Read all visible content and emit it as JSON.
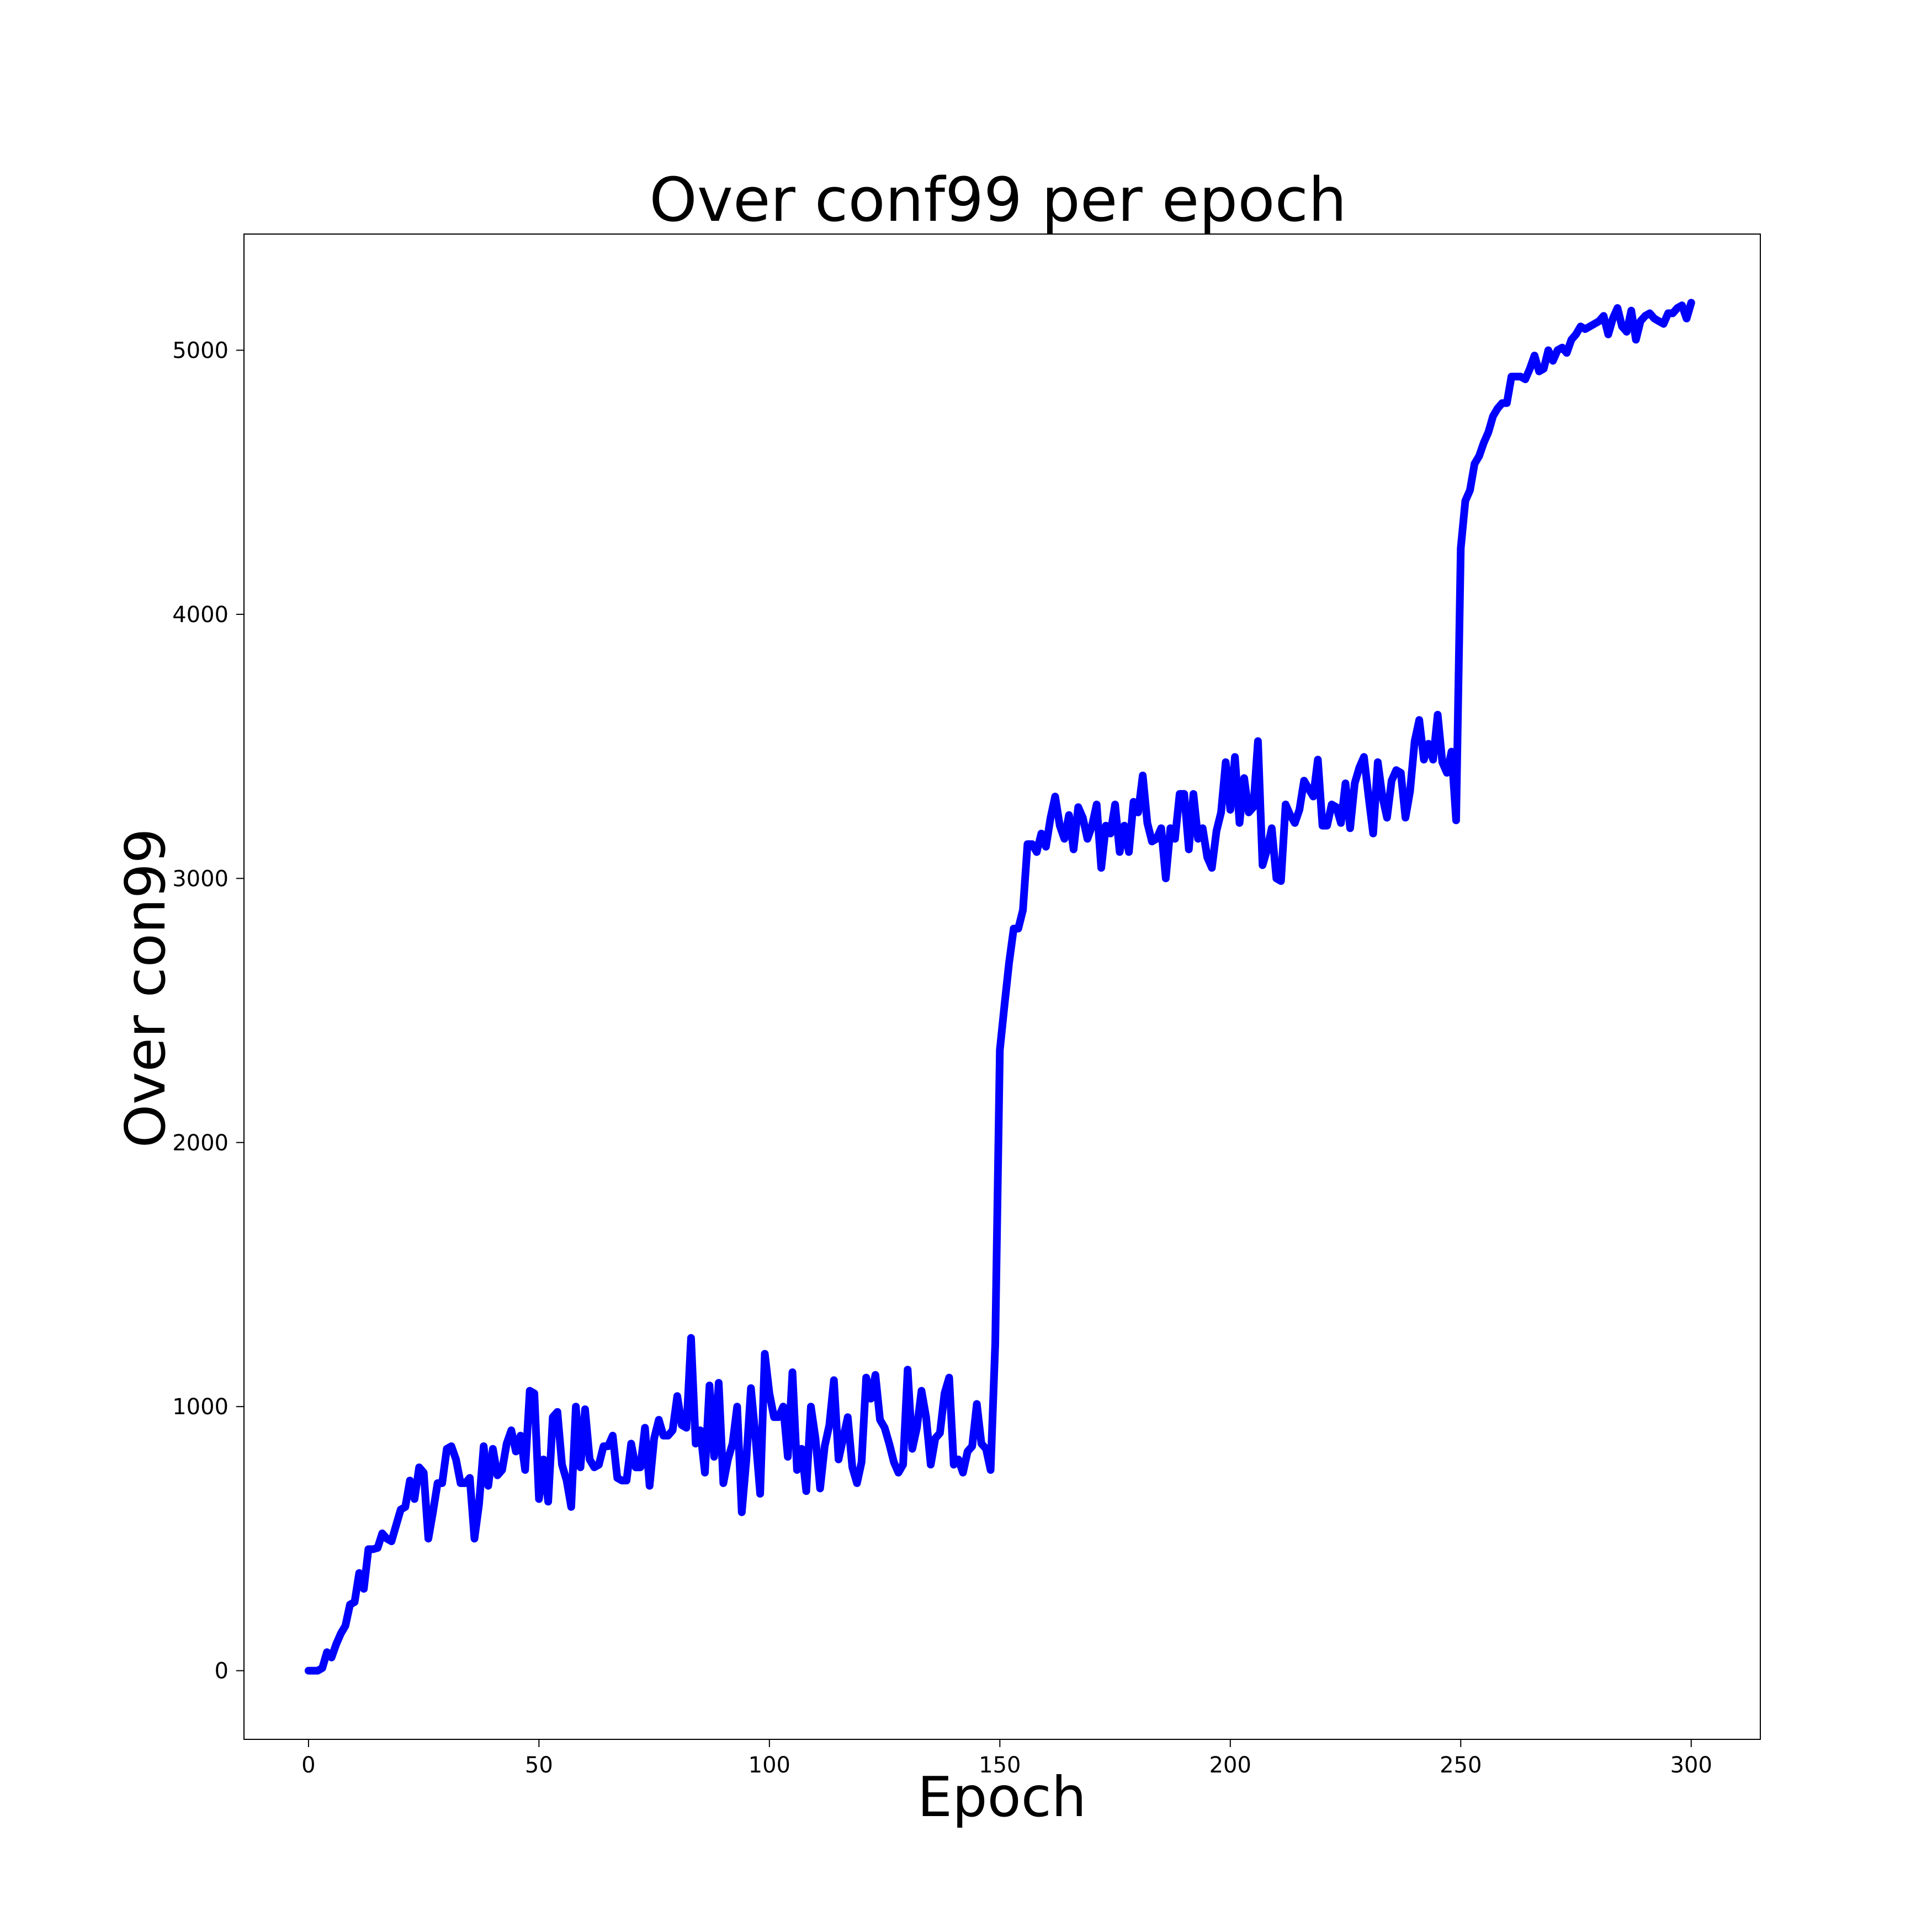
{
  "chart_data": {
    "type": "line",
    "title": "Over conf99 per epoch",
    "xlabel": "Epoch",
    "ylabel": "Over con99",
    "xlim": [
      -14,
      315
    ],
    "ylim": [
      -260,
      5440
    ],
    "xticks": [
      0,
      50,
      100,
      150,
      200,
      250,
      300
    ],
    "yticks": [
      0,
      1000,
      2000,
      3000,
      4000,
      5000
    ],
    "grid": false,
    "legend": false,
    "series": [
      {
        "color": "#0000ff",
        "x": [
          0,
          1,
          2,
          3,
          4,
          5,
          6,
          7,
          8,
          9,
          10,
          11,
          12,
          13,
          14,
          15,
          16,
          17,
          18,
          19,
          20,
          21,
          22,
          23,
          24,
          25,
          26,
          27,
          28,
          29,
          30,
          31,
          32,
          33,
          34,
          35,
          36,
          37,
          38,
          39,
          40,
          41,
          42,
          43,
          44,
          45,
          46,
          47,
          48,
          49,
          50,
          51,
          52,
          53,
          54,
          55,
          56,
          57,
          58,
          59,
          60,
          61,
          62,
          63,
          64,
          65,
          66,
          67,
          68,
          69,
          70,
          71,
          72,
          73,
          74,
          75,
          76,
          77,
          78,
          79,
          80,
          81,
          82,
          83,
          84,
          85,
          86,
          87,
          88,
          89,
          90,
          91,
          92,
          93,
          94,
          95,
          96,
          97,
          98,
          99,
          100,
          101,
          102,
          103,
          104,
          105,
          106,
          107,
          108,
          109,
          110,
          111,
          112,
          113,
          114,
          115,
          116,
          117,
          118,
          119,
          120,
          121,
          122,
          123,
          124,
          125,
          126,
          127,
          128,
          129,
          130,
          131,
          132,
          133,
          134,
          135,
          136,
          137,
          138,
          139,
          140,
          141,
          142,
          143,
          144,
          145,
          146,
          147,
          148,
          149,
          150,
          151,
          152,
          153,
          154,
          155,
          156,
          157,
          158,
          159,
          160,
          161,
          162,
          163,
          164,
          165,
          166,
          167,
          168,
          169,
          170,
          171,
          172,
          173,
          174,
          175,
          176,
          177,
          178,
          179,
          180,
          181,
          182,
          183,
          184,
          185,
          186,
          187,
          188,
          189,
          190,
          191,
          192,
          193,
          194,
          195,
          196,
          197,
          198,
          199,
          200,
          201,
          202,
          203,
          204,
          205,
          206,
          207,
          208,
          209,
          210,
          211,
          212,
          213,
          214,
          215,
          216,
          217,
          218,
          219,
          220,
          221,
          222,
          223,
          224,
          225,
          226,
          227,
          228,
          229,
          230,
          231,
          232,
          233,
          234,
          235,
          236,
          237,
          238,
          239,
          240,
          241,
          242,
          243,
          244,
          245,
          246,
          247,
          248,
          249,
          250,
          251,
          252,
          253,
          254,
          255,
          256,
          257,
          258,
          259,
          260,
          261,
          262,
          263,
          264,
          265,
          266,
          267,
          268,
          269,
          270,
          271,
          272,
          273,
          274,
          275,
          276,
          277,
          278,
          279,
          280,
          281,
          282,
          283,
          284,
          285,
          286,
          287,
          288,
          289,
          290,
          291,
          292,
          293,
          294,
          295,
          296,
          297,
          298,
          299,
          300
        ],
        "y": [
          0,
          0,
          0,
          10,
          70,
          50,
          100,
          140,
          170,
          250,
          260,
          370,
          310,
          460,
          460,
          465,
          520,
          500,
          490,
          550,
          610,
          620,
          720,
          650,
          770,
          750,
          500,
          600,
          710,
          710,
          840,
          850,
          800,
          710,
          710,
          730,
          500,
          630,
          850,
          700,
          840,
          740,
          760,
          860,
          910,
          830,
          890,
          760,
          1060,
          1050,
          650,
          800,
          640,
          960,
          980,
          780,
          720,
          620,
          1000,
          770,
          990,
          800,
          770,
          780,
          850,
          850,
          890,
          730,
          720,
          720,
          860,
          770,
          770,
          920,
          700,
          880,
          950,
          890,
          890,
          910,
          1040,
          930,
          920,
          1260,
          860,
          910,
          750,
          1080,
          810,
          1090,
          710,
          800,
          860,
          1000,
          600,
          800,
          1070,
          880,
          670,
          1200,
          1050,
          960,
          960,
          1000,
          810,
          1130,
          760,
          840,
          680,
          1000,
          880,
          690,
          850,
          930,
          1100,
          800,
          880,
          960,
          770,
          710,
          790,
          1110,
          1030,
          1120,
          950,
          920,
          860,
          790,
          750,
          780,
          1140,
          840,
          920,
          1060,
          960,
          780,
          880,
          900,
          1050,
          1110,
          780,
          800,
          750,
          830,
          850,
          1010,
          860,
          840,
          760,
          1240,
          2350,
          2520,
          2680,
          2810,
          2810,
          2880,
          3130,
          3130,
          3100,
          3170,
          3120,
          3230,
          3310,
          3200,
          3150,
          3240,
          3110,
          3270,
          3230,
          3150,
          3200,
          3280,
          3040,
          3200,
          3170,
          3280,
          3100,
          3200,
          3100,
          3290,
          3250,
          3390,
          3210,
          3140,
          3150,
          3190,
          3000,
          3190,
          3150,
          3320,
          3320,
          3110,
          3320,
          3150,
          3190,
          3080,
          3040,
          3180,
          3250,
          3440,
          3260,
          3460,
          3210,
          3380,
          3250,
          3270,
          3520,
          3050,
          3110,
          3190,
          3000,
          2990,
          3280,
          3240,
          3210,
          3260,
          3370,
          3340,
          3310,
          3450,
          3200,
          3200,
          3280,
          3270,
          3210,
          3360,
          3190,
          3360,
          3420,
          3460,
          3310,
          3170,
          3440,
          3310,
          3230,
          3370,
          3410,
          3400,
          3230,
          3330,
          3520,
          3600,
          3450,
          3510,
          3450,
          3620,
          3440,
          3400,
          3480,
          3220,
          4250,
          4430,
          4470,
          4570,
          4600,
          4650,
          4690,
          4750,
          4780,
          4800,
          4800,
          4900,
          4900,
          4900,
          4890,
          4930,
          4980,
          4920,
          4930,
          5000,
          4960,
          5000,
          5010,
          4990,
          5040,
          5060,
          5090,
          5080,
          5090,
          5100,
          5110,
          5130,
          5060,
          5120,
          5160,
          5090,
          5070,
          5150,
          5040,
          5110,
          5130,
          5140,
          5120,
          5110,
          5100,
          5140,
          5140,
          5160,
          5170,
          5120,
          5180
        ]
      }
    ]
  }
}
